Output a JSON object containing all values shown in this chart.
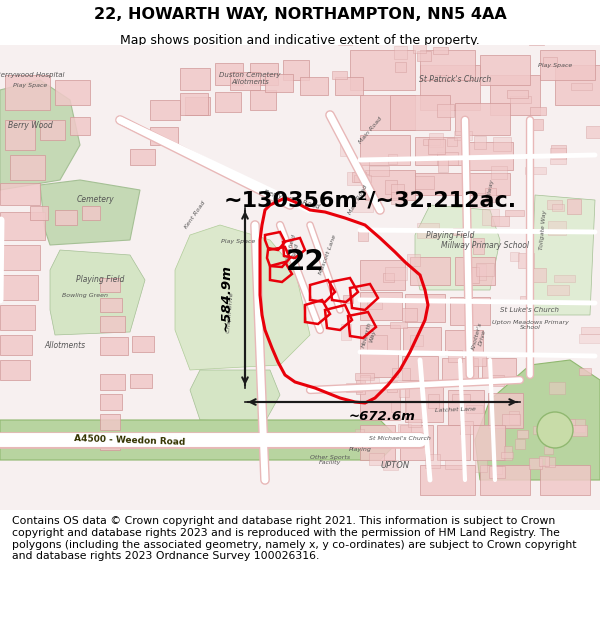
{
  "title_line1": "22, HOWARTH WAY, NORTHAMPTON, NN5 4AA",
  "title_line2": "Map shows position and indicative extent of the property.",
  "area_annotation": "~130356m²/~32.212ac.",
  "width_annotation": "~672.6m",
  "height_annotation": "~584.9m",
  "label_22": "22",
  "footer_text": "Contains OS data © Crown copyright and database right 2021. This information is subject to Crown copyright and database rights 2023 and is reproduced with the permission of HM Land Registry. The polygons (including the associated geometry, namely x, y co-ordinates) are subject to Crown copyright and database rights 2023 Ordnance Survey 100026316.",
  "map_bg": "#f5eeee",
  "building_color": "#e8c0c0",
  "building_edge": "#d09090",
  "road_color": "#ffffff",
  "road_edge": "#e0b0b0",
  "green_color": "#c8ddb8",
  "green_edge": "#a8c898",
  "water_color": "#b8d8b8",
  "highlight_red": "#e8000a",
  "arrow_color": "#1a1a1a",
  "title_fontsize": 11.5,
  "subtitle_fontsize": 9,
  "annotation_fontsize": 16,
  "label22_fontsize": 20,
  "footer_fontsize": 7.8,
  "map_label_fontsize": 6.5,
  "fig_width": 6.0,
  "fig_height": 6.25
}
